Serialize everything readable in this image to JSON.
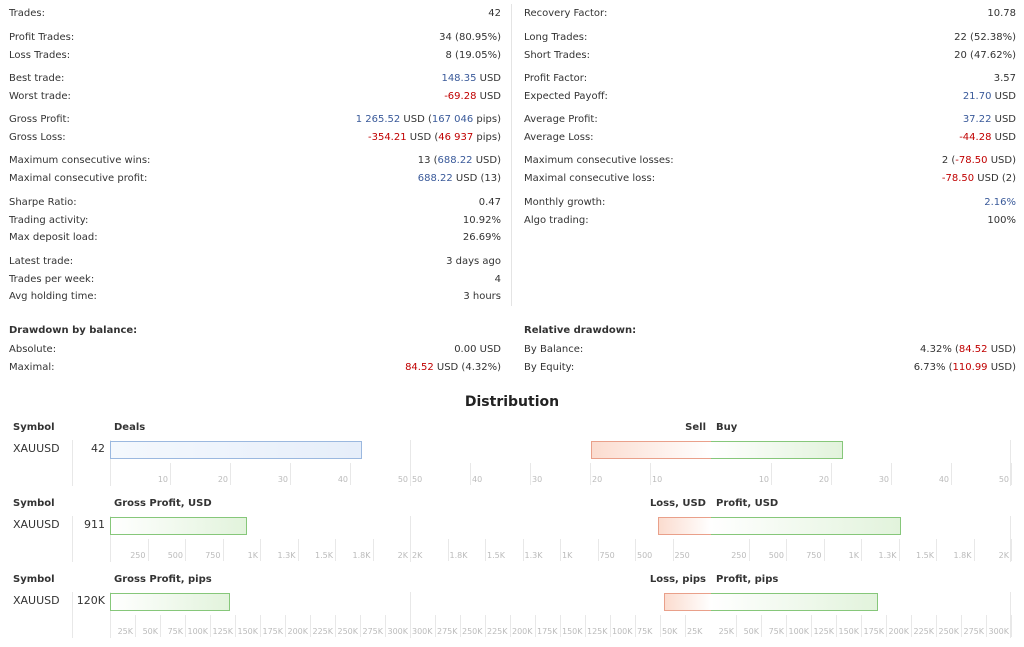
{
  "stats_left": [
    {
      "label": "Trades:",
      "value": [
        {
          "t": "42"
        }
      ]
    },
    {
      "label": "Profit Trades:",
      "value": [
        {
          "t": "34 (80.95%)"
        }
      ]
    },
    {
      "label": "Loss Trades:",
      "value": [
        {
          "t": "8 (19.05%)"
        }
      ]
    },
    {
      "label": "Best trade:",
      "value": [
        {
          "t": "148.35",
          "c": "pos"
        },
        {
          "t": " USD"
        }
      ]
    },
    {
      "label": "Worst trade:",
      "value": [
        {
          "t": "-69.28",
          "c": "neg"
        },
        {
          "t": " USD"
        }
      ]
    },
    {
      "label": "Gross Profit:",
      "value": [
        {
          "t": "1 265.52",
          "c": "pos"
        },
        {
          "t": " USD ("
        },
        {
          "t": "167 046",
          "c": "pos"
        },
        {
          "t": " pips)"
        }
      ]
    },
    {
      "label": "Gross Loss:",
      "value": [
        {
          "t": "-354.21",
          "c": "neg"
        },
        {
          "t": " USD ("
        },
        {
          "t": "46 937",
          "c": "neg"
        },
        {
          "t": " pips)"
        }
      ]
    },
    {
      "label": "Maximum consecutive wins:",
      "value": [
        {
          "t": "13 ("
        },
        {
          "t": "688.22",
          "c": "pos"
        },
        {
          "t": " USD)"
        }
      ]
    },
    {
      "label": "Maximal consecutive profit:",
      "value": [
        {
          "t": "688.22",
          "c": "pos"
        },
        {
          "t": " USD (13)"
        }
      ]
    },
    {
      "label": "Sharpe Ratio:",
      "value": [
        {
          "t": "0.47"
        }
      ]
    },
    {
      "label": "Trading activity:",
      "value": [
        {
          "t": "10.92%"
        }
      ]
    },
    {
      "label": "Max deposit load:",
      "value": [
        {
          "t": "26.69%"
        }
      ]
    },
    {
      "label": "Latest trade:",
      "value": [
        {
          "t": "3 days ago"
        }
      ]
    },
    {
      "label": "Trades per week:",
      "value": [
        {
          "t": "4"
        }
      ]
    },
    {
      "label": "Avg holding time:",
      "value": [
        {
          "t": "3 hours"
        }
      ]
    }
  ],
  "stats_right": [
    {
      "label": "Recovery Factor:",
      "value": [
        {
          "t": "10.78"
        }
      ]
    },
    {
      "label": "Long Trades:",
      "value": [
        {
          "t": "22 (52.38%)"
        }
      ]
    },
    {
      "label": "Short Trades:",
      "value": [
        {
          "t": "20 (47.62%)"
        }
      ]
    },
    {
      "label": "Profit Factor:",
      "value": [
        {
          "t": "3.57"
        }
      ]
    },
    {
      "label": "Expected Payoff:",
      "value": [
        {
          "t": "21.70",
          "c": "pos"
        },
        {
          "t": " USD"
        }
      ]
    },
    {
      "label": "Average Profit:",
      "value": [
        {
          "t": "37.22",
          "c": "pos"
        },
        {
          "t": " USD"
        }
      ]
    },
    {
      "label": "Average Loss:",
      "value": [
        {
          "t": "-44.28",
          "c": "neg"
        },
        {
          "t": " USD"
        }
      ]
    },
    {
      "label": "Maximum consecutive losses:",
      "value": [
        {
          "t": "2 ("
        },
        {
          "t": "-78.50",
          "c": "neg"
        },
        {
          "t": " USD)"
        }
      ]
    },
    {
      "label": "Maximal consecutive loss:",
      "value": [
        {
          "t": "-78.50",
          "c": "neg"
        },
        {
          "t": " USD (2)"
        }
      ]
    },
    {
      "label": "Monthly growth:",
      "value": [
        {
          "t": "2.16%",
          "c": "pos"
        }
      ]
    },
    {
      "label": "Algo trading:",
      "value": [
        {
          "t": "100%"
        }
      ]
    }
  ],
  "drawdown_balance": {
    "title": "Drawdown by balance:",
    "rows": [
      {
        "label": "Absolute:",
        "value": [
          {
            "t": "0.00 USD"
          }
        ]
      },
      {
        "label": "Maximal:",
        "value": [
          {
            "t": "84.52",
            "c": "neg"
          },
          {
            "t": " USD (4.32%)"
          }
        ]
      }
    ]
  },
  "drawdown_relative": {
    "title": "Relative drawdown:",
    "rows": [
      {
        "label": "By Balance:",
        "value": [
          {
            "t": "4.32% ("
          },
          {
            "t": "84.52",
            "c": "neg"
          },
          {
            "t": " USD)"
          }
        ]
      },
      {
        "label": "By Equity:",
        "value": [
          {
            "t": "6.73% ("
          },
          {
            "t": "110.99",
            "c": "neg"
          },
          {
            "t": " USD)"
          }
        ]
      }
    ]
  },
  "colors": {
    "positive": "#3a5a9a",
    "negative": "#c00000",
    "buy_bar": "#86c77a",
    "sell_bar": "#e9a08a",
    "deals_bar": "#9bb8df"
  },
  "distribution": {
    "title": "Distribution",
    "charts": [
      {
        "symbol_header": "Symbol",
        "symbol": "XAUUSD",
        "value_label": "42",
        "left_title": "Deals",
        "left_value": 42,
        "left_max": 50,
        "left_color": "blue",
        "left_ticks": [
          "10",
          "20",
          "30",
          "40",
          "50"
        ],
        "neg_title": "Sell",
        "pos_title": "Buy",
        "neg_value": 20,
        "pos_value": 22,
        "right_max": 50,
        "right_neg_ticks": [
          "50",
          "40",
          "30",
          "20",
          "10"
        ],
        "right_pos_ticks": [
          "10",
          "20",
          "30",
          "40",
          "50"
        ]
      },
      {
        "symbol_header": "Symbol",
        "symbol": "XAUUSD",
        "value_label": "911",
        "left_title": "Gross Profit, USD",
        "left_value": 911,
        "left_max": 2000,
        "left_color": "green",
        "left_ticks": [
          "250",
          "500",
          "750",
          "1K",
          "1.3K",
          "1.5K",
          "1.8K",
          "2K"
        ],
        "neg_title": "Loss, USD",
        "pos_title": "Profit, USD",
        "neg_value": 354.21,
        "pos_value": 1265.52,
        "right_max": 2000,
        "right_neg_ticks": [
          "2K",
          "1.8K",
          "1.5K",
          "1.3K",
          "1K",
          "750",
          "500",
          "250"
        ],
        "right_pos_ticks": [
          "250",
          "500",
          "750",
          "1K",
          "1.3K",
          "1.5K",
          "1.8K",
          "2K"
        ]
      },
      {
        "symbol_header": "Symbol",
        "symbol": "XAUUSD",
        "value_label": "120K",
        "left_title": "Gross Profit, pips",
        "left_value": 120000,
        "left_max": 300000,
        "left_color": "green",
        "left_ticks": [
          "25K",
          "50K",
          "75K",
          "100K",
          "125K",
          "150K",
          "175K",
          "200K",
          "225K",
          "250K",
          "275K",
          "300K"
        ],
        "neg_title": "Loss, pips",
        "pos_title": "Profit, pips",
        "neg_value": 46937,
        "pos_value": 167046,
        "right_max": 300000,
        "right_neg_ticks": [
          "300K",
          "275K",
          "250K",
          "225K",
          "200K",
          "175K",
          "150K",
          "125K",
          "100K",
          "75K",
          "50K",
          "25K"
        ],
        "right_pos_ticks": [
          "25K",
          "50K",
          "75K",
          "100K",
          "125K",
          "150K",
          "175K",
          "200K",
          "225K",
          "250K",
          "275K",
          "300K"
        ]
      }
    ]
  }
}
